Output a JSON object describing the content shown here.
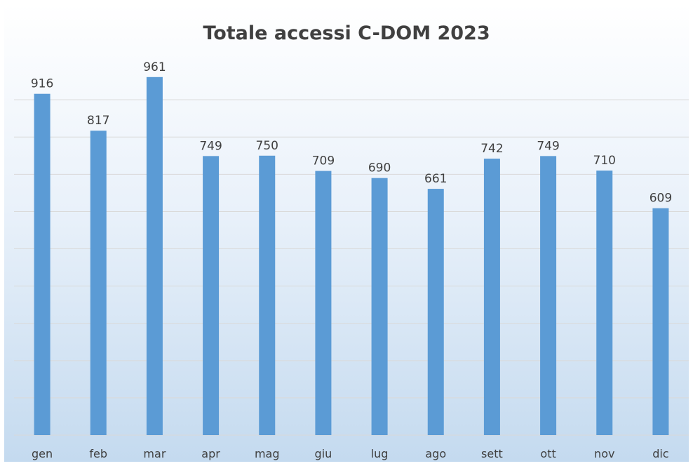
{
  "chart_data": {
    "type": "bar",
    "title": "Totale accessi C-DOM 2023",
    "categories": [
      "gen",
      "feb",
      "mar",
      "apr",
      "mag",
      "giu",
      "lug",
      "ago",
      "sett",
      "ott",
      "nov",
      "dic"
    ],
    "values": [
      916,
      817,
      961,
      749,
      750,
      709,
      690,
      661,
      742,
      749,
      710,
      609
    ],
    "ylim": [
      0,
      1100
    ],
    "grid": true,
    "legend": "none",
    "colors": {
      "bar": "#5b9bd5",
      "grid": "#d9d9d9",
      "text": "#404040"
    }
  }
}
